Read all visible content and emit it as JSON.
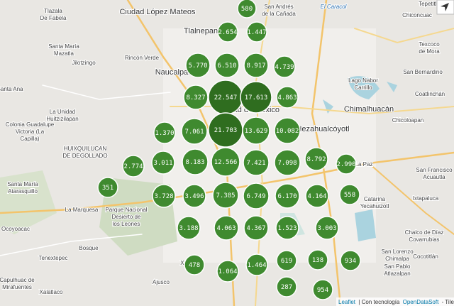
{
  "places": [
    {
      "lines": [
        "Tlazala",
        "De Fabela"
      ]
    },
    {
      "lines": [
        "Ciudad López Mateos"
      ]
    },
    {
      "lines": [
        "San Andrés",
        "de la Cañada"
      ]
    },
    {
      "lines": [
        "El Caracol"
      ]
    },
    {
      "lines": [
        "Tepetitla"
      ]
    },
    {
      "lines": [
        "Chiconcuac"
      ]
    },
    {
      "lines": [
        "Tlalnepan"
      ]
    },
    {
      "lines": [
        "Texcoco",
        "de Mora"
      ]
    },
    {
      "lines": [
        "Santa María",
        "Mazatla"
      ]
    },
    {
      "lines": [
        "Jilotzingo"
      ]
    },
    {
      "lines": [
        "Rincón Verde"
      ]
    },
    {
      "lines": [
        "Naucalpan"
      ]
    },
    {
      "lines": [
        "San Bernardino"
      ]
    },
    {
      "lines": [
        "Lago Nabor",
        "Carrillo"
      ]
    },
    {
      "lines": [
        "Coatlinchán"
      ]
    },
    {
      "lines": [
        "Santa Ana"
      ]
    },
    {
      "lines": [
        "La Unidad",
        "Huitzizilapan"
      ]
    },
    {
      "lines": [
        "Chimalhuacán"
      ]
    },
    {
      "lines": [
        "Ciudad de México"
      ]
    },
    {
      "lines": [
        "Colonia Guadalupe",
        "Victoria (La",
        "Capilla)"
      ]
    },
    {
      "lines": [
        "Nezahualcóyotl"
      ]
    },
    {
      "lines": [
        "Chicoloapan"
      ]
    },
    {
      "lines": [
        "HUIXQUILUCAN",
        "DE DEGOLLADO"
      ]
    },
    {
      "lines": [
        "La Paz"
      ]
    },
    {
      "lines": [
        "San Francisco",
        "Acuautla"
      ]
    },
    {
      "lines": [
        "Santa María",
        "Atarasquillo"
      ]
    },
    {
      "lines": [
        "Ixtapaluca"
      ]
    },
    {
      "lines": [
        "La Marquesa"
      ]
    },
    {
      "lines": [
        "Parque Nacional",
        "Desierto de",
        "los Leones"
      ]
    },
    {
      "lines": [
        "Catarina",
        "Yecahuizotl"
      ]
    },
    {
      "lines": [
        "Ocoyoacac"
      ]
    },
    {
      "lines": [
        "Chalco de Díaz",
        "Covarrubias"
      ]
    },
    {
      "lines": [
        "Bosque"
      ]
    },
    {
      "lines": [
        "Tenextepec"
      ]
    },
    {
      "lines": [
        "San Lorenzo",
        "Chimalpa"
      ]
    },
    {
      "lines": [
        "Cocotitlán"
      ]
    },
    {
      "lines": [
        "Capulhuac de",
        "Mirafuentes"
      ]
    },
    {
      "lines": [
        "Xalatlaco"
      ]
    },
    {
      "lines": [
        "Xitle"
      ]
    },
    {
      "lines": [
        "Ajusco"
      ]
    },
    {
      "lines": [
        "San Pablo",
        "Atlazalpan"
      ]
    }
  ],
  "markers": [
    {
      "label": "580"
    },
    {
      "label": "2.654"
    },
    {
      "label": "1.447"
    },
    {
      "label": "5.770"
    },
    {
      "label": "6.510"
    },
    {
      "label": "8.917"
    },
    {
      "label": "4.739"
    },
    {
      "label": "8.327"
    },
    {
      "label": "22.547"
    },
    {
      "label": "17.613"
    },
    {
      "label": "4.863"
    },
    {
      "label": "1.370"
    },
    {
      "label": "7.061"
    },
    {
      "label": "21.703"
    },
    {
      "label": "13.629"
    },
    {
      "label": "10.082"
    },
    {
      "label": "2.774"
    },
    {
      "label": "3.011"
    },
    {
      "label": "8.183"
    },
    {
      "label": "12.566"
    },
    {
      "label": "7.421"
    },
    {
      "label": "7.098"
    },
    {
      "label": "8.792"
    },
    {
      "label": "2.990"
    },
    {
      "label": "351"
    },
    {
      "label": "3.728"
    },
    {
      "label": "3.496"
    },
    {
      "label": "7.385"
    },
    {
      "label": "6.749"
    },
    {
      "label": "6.170"
    },
    {
      "label": "4.164"
    },
    {
      "label": "558"
    },
    {
      "label": "3.188"
    },
    {
      "label": "4.063"
    },
    {
      "label": "4.367"
    },
    {
      "label": "1.523"
    },
    {
      "label": "3.003"
    },
    {
      "label": "478"
    },
    {
      "label": "1.064"
    },
    {
      "label": "1.464"
    },
    {
      "label": "619"
    },
    {
      "label": "138"
    },
    {
      "label": "934"
    },
    {
      "label": "287"
    },
    {
      "label": "954"
    }
  ],
  "attribution": {
    "leaflet": "Leaflet",
    "text": "| Con tecnología",
    "provider": "OpenDataSoft",
    "tiles": "- Tiles ©"
  }
}
